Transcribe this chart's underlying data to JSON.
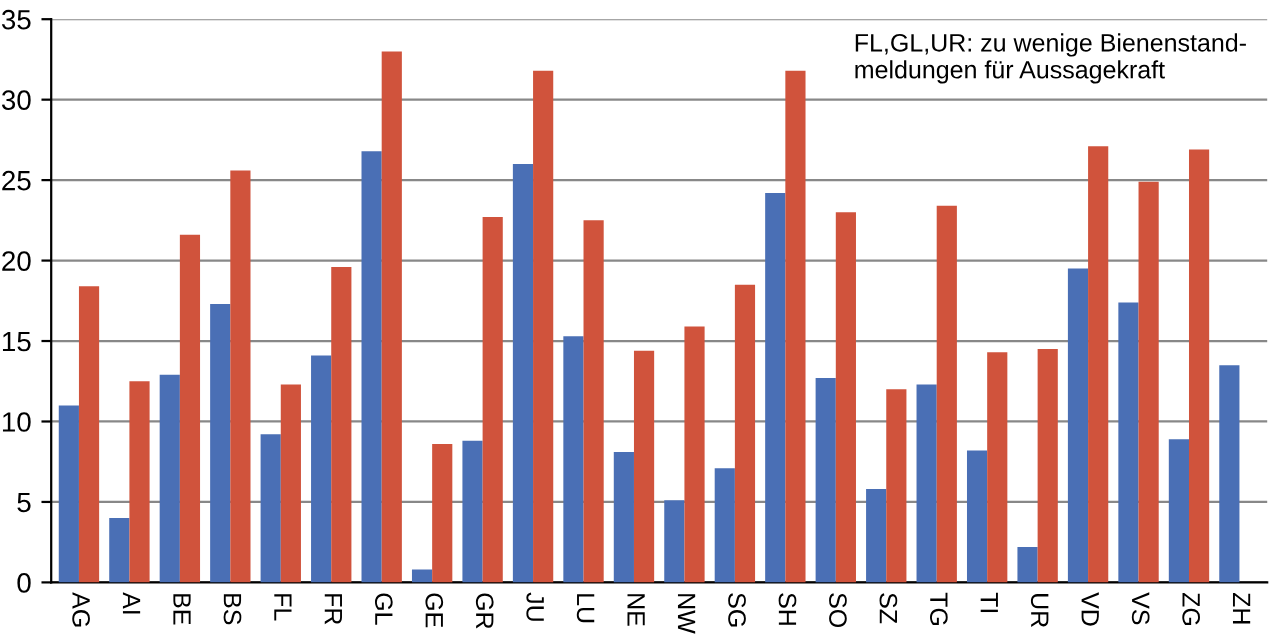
{
  "chart_data": {
    "type": "bar",
    "categories": [
      "AG",
      "AI",
      "BE",
      "BS",
      "FL",
      "FR",
      "GL",
      "GE",
      "GR",
      "JU",
      "LU",
      "NE",
      "NW",
      "SG",
      "SH",
      "SO",
      "SZ",
      "TG",
      "TI",
      "UR",
      "VD",
      "VS",
      "ZG",
      "ZH"
    ],
    "series": [
      {
        "color": "#4a6fb5",
        "values": [
          11.0,
          4.0,
          12.9,
          17.3,
          9.2,
          14.1,
          26.8,
          0.8,
          8.8,
          26.0,
          15.3,
          8.1,
          5.1,
          7.1,
          24.2,
          12.7,
          5.8,
          12.3,
          8.2,
          2.2,
          19.5,
          17.4,
          8.9,
          13.5
        ]
      },
      {
        "color": "#d0533c",
        "values": [
          18.4,
          12.5,
          21.6,
          25.6,
          12.3,
          19.6,
          33.0,
          8.6,
          22.7,
          31.8,
          22.5,
          14.4,
          15.9,
          18.5,
          31.8,
          23.0,
          12.0,
          23.4,
          14.3,
          14.5,
          27.1,
          24.9,
          26.9,
          null
        ]
      }
    ],
    "ylim": [
      0,
      35
    ],
    "yticks": [
      0,
      5,
      10,
      15,
      20,
      25,
      30,
      35
    ],
    "grid": "y",
    "legend": false,
    "annotations": [
      "FL,GL,UR: zu wenige Bienenstand-\nmeldungen für Aussagekraft"
    ]
  }
}
